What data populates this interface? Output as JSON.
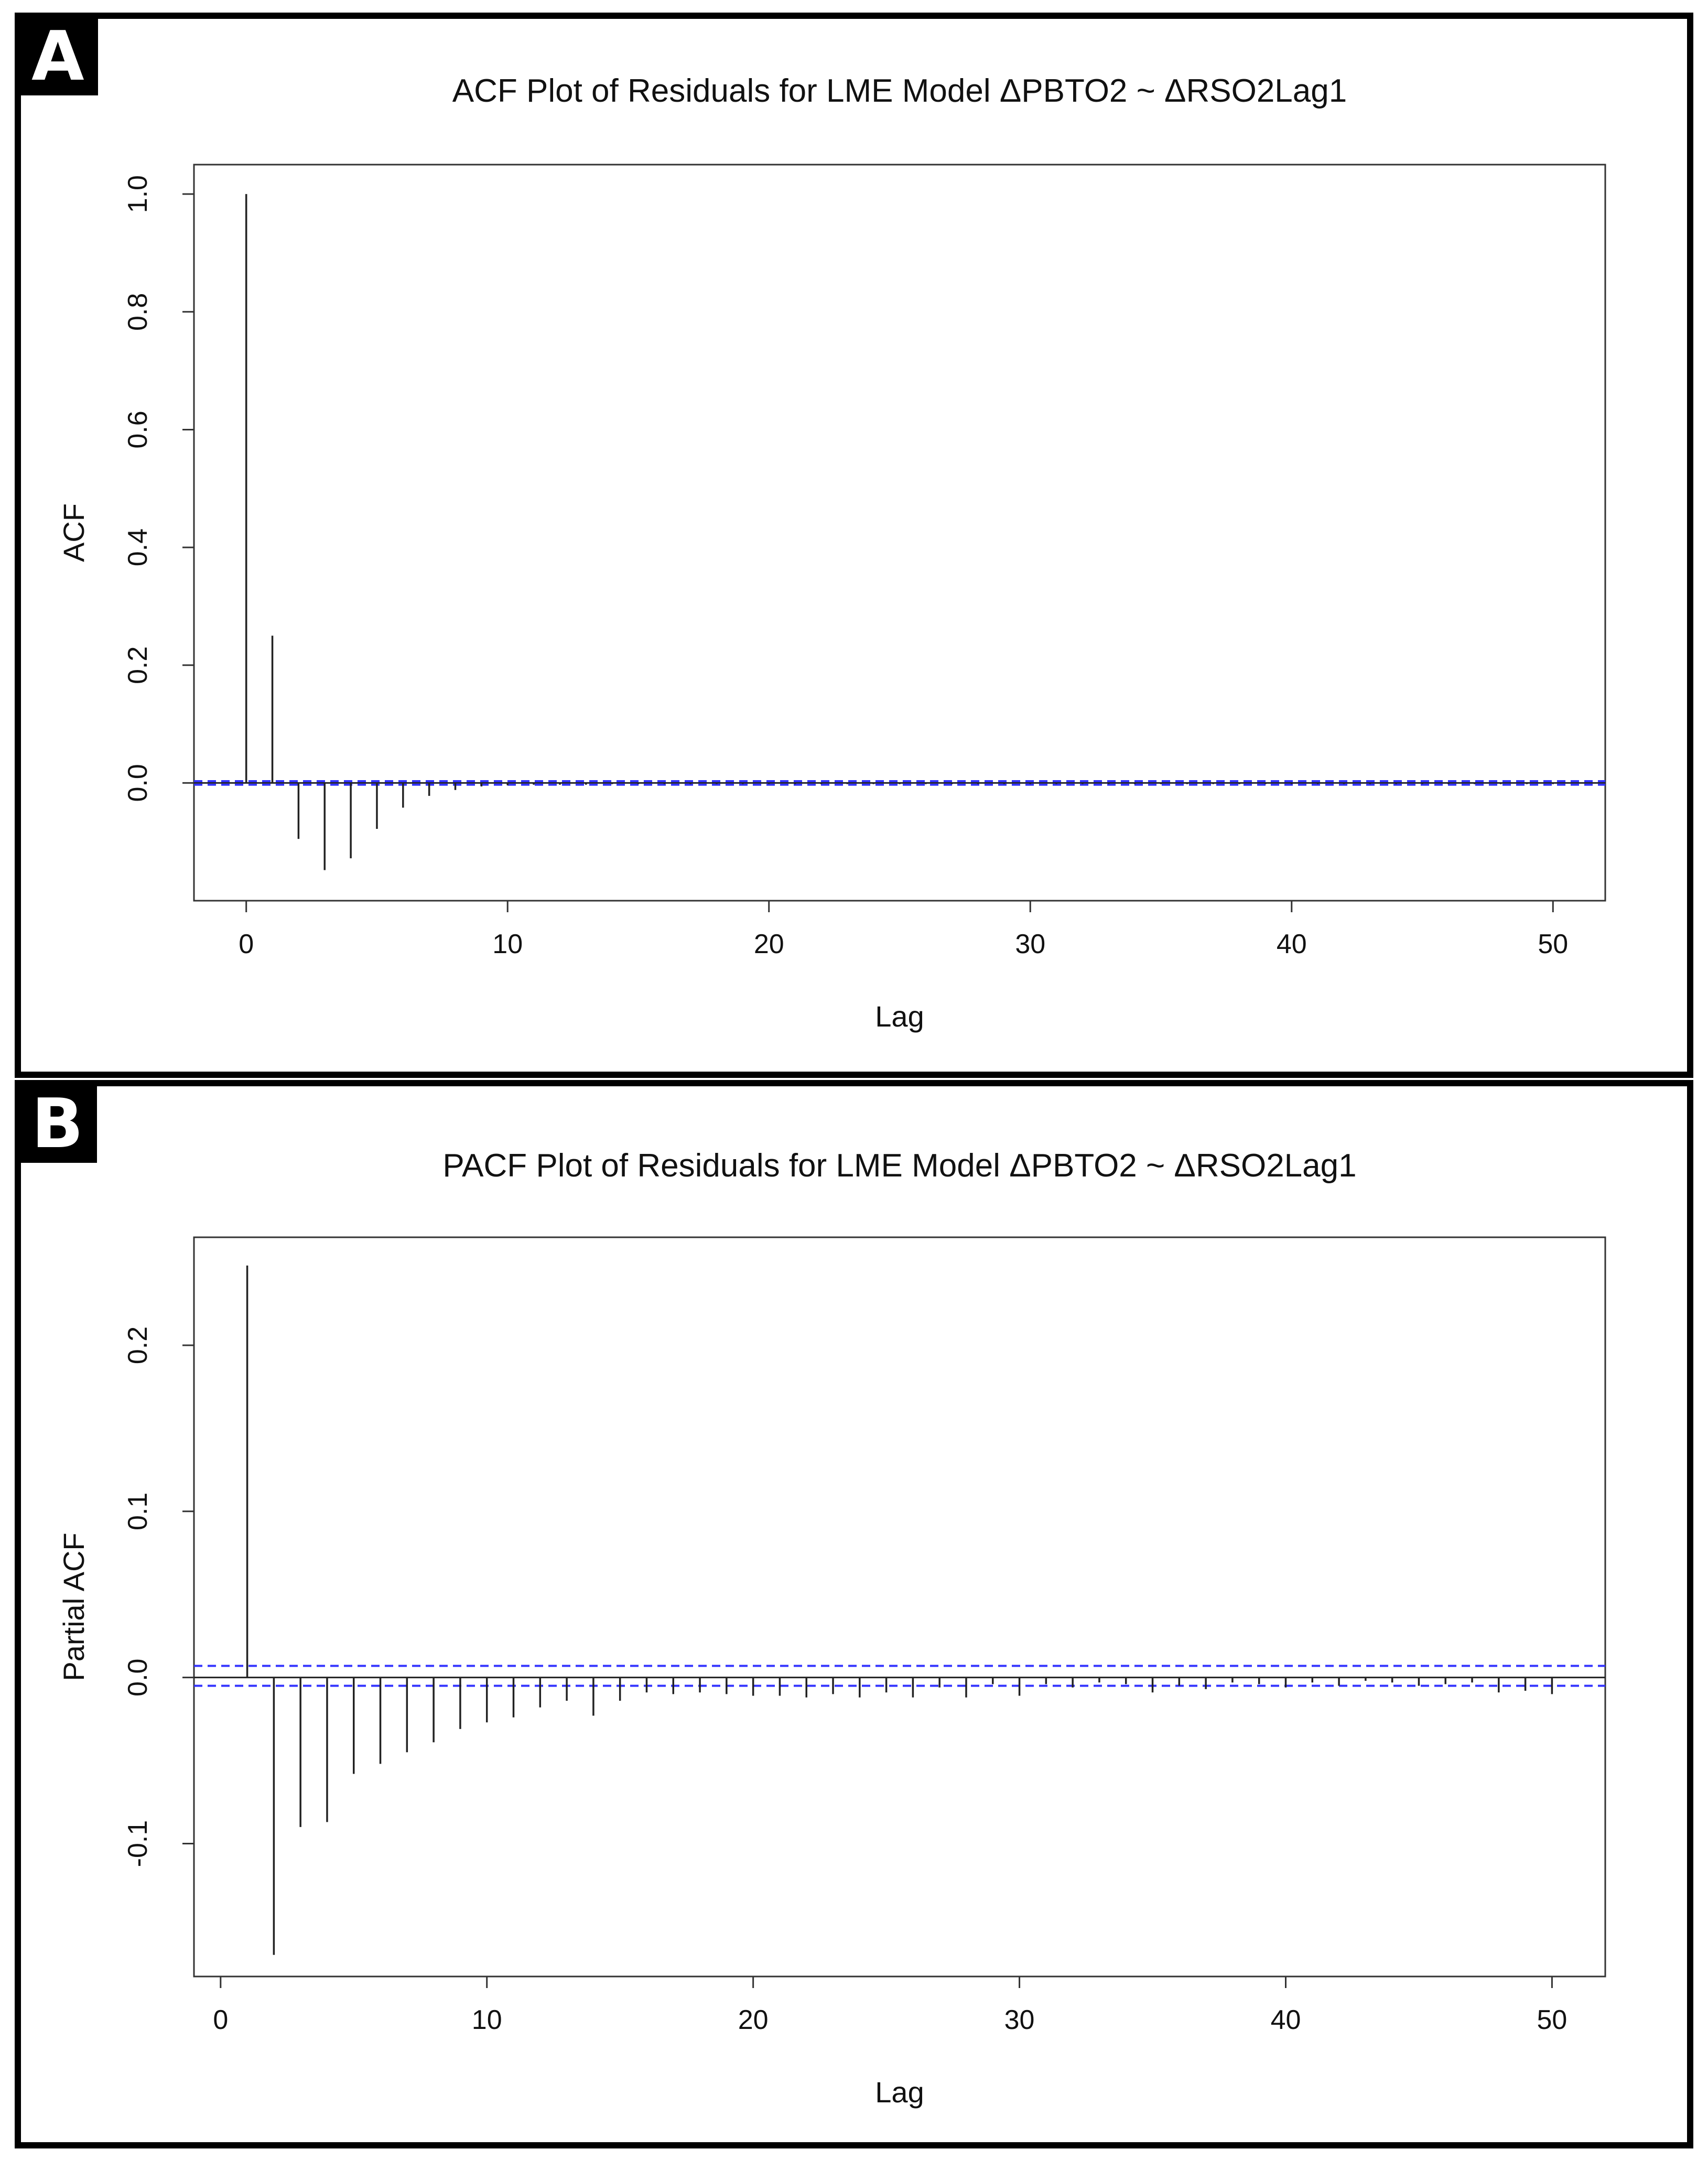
{
  "panels": [
    {
      "label": "A"
    },
    {
      "label": "B"
    }
  ],
  "chart_data": [
    {
      "type": "bar",
      "subtype": "acf-spikes",
      "title": "ACF Plot of Residuals for LME Model ΔPBTO2 ~ ΔRSO2Lag1",
      "xlabel": "Lag",
      "ylabel": "ACF",
      "xlim": [
        -2,
        52
      ],
      "ylim": [
        -0.2,
        1.05
      ],
      "xticks": [
        0,
        10,
        20,
        30,
        40,
        50
      ],
      "yticks": [
        0.0,
        0.2,
        0.4,
        0.6,
        0.8,
        1.0
      ],
      "ytick_labels": [
        "0.0",
        "0.2",
        "0.4",
        "0.6",
        "0.8",
        "1.0"
      ],
      "confidence_band": [
        -0.003,
        0.003
      ],
      "confidence_color": "#3333ff",
      "lags": [
        0,
        1,
        2,
        3,
        4,
        5,
        6,
        7,
        8,
        9,
        10,
        11,
        12,
        13,
        14,
        15,
        16,
        17,
        18,
        19,
        20,
        21,
        22,
        23,
        24,
        25,
        26,
        27,
        28,
        29,
        30,
        31,
        32,
        33,
        34,
        35,
        36,
        37,
        38,
        39,
        40,
        41,
        42,
        43,
        44,
        45,
        46,
        47,
        48,
        49,
        50
      ],
      "values": [
        1.0,
        0.25,
        -0.095,
        -0.148,
        -0.128,
        -0.078,
        -0.042,
        -0.022,
        -0.012,
        -0.006,
        -0.004,
        -0.003,
        -0.003,
        -0.003,
        -0.002,
        -0.002,
        -0.002,
        -0.002,
        -0.002,
        -0.002,
        -0.002,
        -0.002,
        -0.002,
        -0.002,
        -0.002,
        -0.002,
        -0.002,
        -0.002,
        -0.002,
        -0.002,
        -0.002,
        -0.002,
        -0.002,
        -0.002,
        -0.002,
        -0.002,
        -0.002,
        -0.002,
        -0.002,
        -0.002,
        -0.002,
        -0.002,
        -0.002,
        -0.002,
        -0.002,
        -0.002,
        -0.002,
        -0.002,
        -0.002,
        -0.002,
        -0.002
      ]
    },
    {
      "type": "bar",
      "subtype": "acf-spikes",
      "title": "PACF Plot of Residuals for LME Model ΔPBTO2 ~ ΔRSO2Lag1",
      "xlabel": "Lag",
      "ylabel": "Partial ACF",
      "xlim": [
        -1,
        52
      ],
      "ylim": [
        -0.18,
        0.265
      ],
      "xticks": [
        0,
        10,
        20,
        30,
        40,
        50
      ],
      "yticks": [
        -0.1,
        0.0,
        0.1,
        0.2
      ],
      "ytick_labels": [
        "-0.1",
        "0.0",
        "0.1",
        "0.2"
      ],
      "confidence_band": [
        -0.005,
        0.007
      ],
      "confidence_color": "#3333ff",
      "lags": [
        1,
        2,
        3,
        4,
        5,
        6,
        7,
        8,
        9,
        10,
        11,
        12,
        13,
        14,
        15,
        16,
        17,
        18,
        19,
        20,
        21,
        22,
        23,
        24,
        25,
        26,
        27,
        28,
        29,
        30,
        31,
        32,
        33,
        34,
        35,
        36,
        37,
        38,
        39,
        40,
        41,
        42,
        43,
        44,
        45,
        46,
        47,
        48,
        49,
        50
      ],
      "values": [
        0.248,
        -0.167,
        -0.09,
        -0.087,
        -0.058,
        -0.052,
        -0.045,
        -0.039,
        -0.031,
        -0.027,
        -0.024,
        -0.018,
        -0.014,
        -0.023,
        -0.014,
        -0.009,
        -0.01,
        -0.009,
        -0.01,
        -0.011,
        -0.011,
        -0.012,
        -0.01,
        -0.012,
        -0.009,
        -0.012,
        -0.006,
        -0.012,
        -0.004,
        -0.011,
        -0.004,
        -0.006,
        -0.003,
        -0.004,
        -0.009,
        -0.005,
        -0.007,
        -0.003,
        -0.004,
        -0.006,
        -0.003,
        -0.005,
        -0.002,
        -0.003,
        -0.005,
        -0.004,
        -0.003,
        -0.009,
        -0.008,
        -0.01
      ]
    }
  ]
}
